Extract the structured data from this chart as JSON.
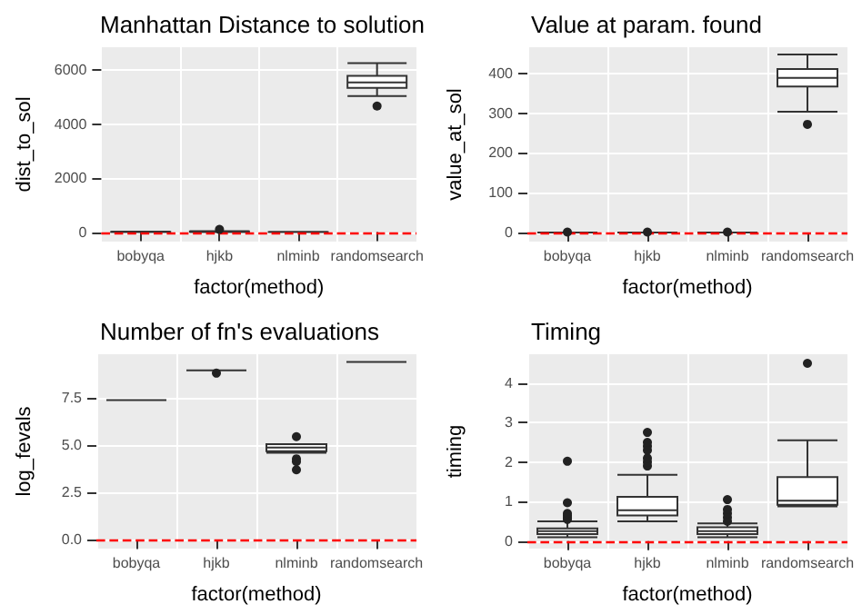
{
  "chart_data": [
    {
      "type": "box",
      "title": "Manhattan Distance to solution",
      "xlabel": "factor(method)",
      "ylabel": "dist_to_sol",
      "categories": [
        "bobyqa",
        "hjkb",
        "nlminb",
        "randomsearch"
      ],
      "boxes": [
        {
          "low": 0,
          "q1": 0,
          "median": 5,
          "q3": 10,
          "high": 20
        },
        {
          "low": 0,
          "q1": 10,
          "median": 20,
          "q3": 30,
          "high": 40,
          "outliers": [
            100
          ]
        },
        {
          "low": 0,
          "q1": 0,
          "median": 0,
          "q3": 5,
          "high": 10
        },
        {
          "low": 5040,
          "q1": 5345,
          "median": 5550,
          "q3": 5790,
          "high": 6265,
          "outliers": [
            4670
          ]
        }
      ],
      "ylim": [
        -350,
        6850
      ],
      "yticks": [
        0,
        2000,
        4000,
        6000
      ],
      "grid": true,
      "ref_lines": [
        {
          "axis": "y",
          "value": 0,
          "color": "#ff0000",
          "line_style": "dashed"
        }
      ]
    },
    {
      "type": "box",
      "title": "Value at param. found",
      "xlabel": "factor(method)",
      "ylabel": "value_at_sol",
      "categories": [
        "bobyqa",
        "hjkb",
        "nlminb",
        "randomsearch"
      ],
      "boxes": [
        {
          "low": 0,
          "q1": 0,
          "median": 0,
          "q3": 0,
          "high": 0,
          "outliers": [
            1
          ]
        },
        {
          "low": 0,
          "q1": 0,
          "median": 0,
          "q3": 0,
          "high": 0,
          "outliers": [
            1
          ]
        },
        {
          "low": 0,
          "q1": 0,
          "median": 0,
          "q3": 0,
          "high": 0,
          "outliers": [
            1
          ]
        },
        {
          "low": 304,
          "q1": 367,
          "median": 389,
          "q3": 411,
          "high": 448,
          "outliers": [
            272
          ]
        }
      ],
      "ylim": [
        -23,
        466
      ],
      "yticks": [
        0,
        100,
        200,
        300,
        400
      ],
      "grid": true,
      "ref_lines": [
        {
          "axis": "y",
          "value": 0,
          "color": "#ff0000",
          "line_style": "dashed"
        }
      ]
    },
    {
      "type": "box",
      "title": "Number of fn's evaluations",
      "xlabel": "factor(method)",
      "ylabel": "log_fevals",
      "categories": [
        "bobyqa",
        "hjkb",
        "nlminb",
        "randomsearch"
      ],
      "boxes": [
        {
          "low": 7.38,
          "q1": 7.38,
          "median": 7.38,
          "q3": 7.38,
          "high": 7.38
        },
        {
          "low": 8.95,
          "q1": 8.95,
          "median": 8.95,
          "q3": 8.95,
          "high": 8.95,
          "outliers": [
            8.8
          ]
        },
        {
          "low": 4.6,
          "q1": 4.68,
          "median": 4.87,
          "q3": 5.05,
          "high": 5.05,
          "outliers": [
            5.45,
            4.28,
            4.13,
            3.7
          ]
        },
        {
          "low": 9.39,
          "q1": 9.39,
          "median": 9.39,
          "q3": 9.39,
          "high": 9.39
        }
      ],
      "ylim": [
        -0.46,
        9.8
      ],
      "yticks": [
        {
          "value": 0,
          "label": "0.0"
        },
        {
          "value": 2.5,
          "label": "2.5"
        },
        {
          "value": 5,
          "label": "5.0"
        },
        {
          "value": 7.5,
          "label": "7.5"
        }
      ],
      "grid": true,
      "ref_lines": [
        {
          "axis": "y",
          "value": 0,
          "color": "#ff0000",
          "line_style": "dashed"
        }
      ]
    },
    {
      "type": "box",
      "title": "Timing",
      "xlabel": "factor(method)",
      "ylabel": "timing",
      "categories": [
        "bobyqa",
        "hjkb",
        "nlminb",
        "randomsearch"
      ],
      "boxes": [
        {
          "low": 0.1,
          "q1": 0.18,
          "median": 0.25,
          "q3": 0.32,
          "high": 0.5,
          "outliers": [
            0.55,
            0.6,
            0.65,
            0.7,
            0.97,
            2.02
          ]
        },
        {
          "low": 0.5,
          "q1": 0.65,
          "median": 0.78,
          "q3": 1.12,
          "high": 1.68,
          "outliers": [
            1.9,
            2.0,
            2.1,
            2.3,
            2.4,
            2.5,
            2.75
          ]
        },
        {
          "low": 0.1,
          "q1": 0.18,
          "median": 0.25,
          "q3": 0.35,
          "high": 0.45,
          "outliers": [
            0.5,
            0.6,
            0.7,
            0.8,
            1.05
          ]
        },
        {
          "low": 0.88,
          "q1": 0.92,
          "median": 1.02,
          "q3": 1.62,
          "high": 2.55,
          "outliers": [
            4.5
          ]
        }
      ],
      "ylim": [
        -0.19,
        4.73
      ],
      "yticks": [
        0,
        1,
        2,
        3,
        4
      ],
      "grid": true,
      "ref_lines": [
        {
          "axis": "y",
          "value": 0,
          "color": "#ff0000",
          "line_style": "dashed"
        }
      ]
    }
  ]
}
